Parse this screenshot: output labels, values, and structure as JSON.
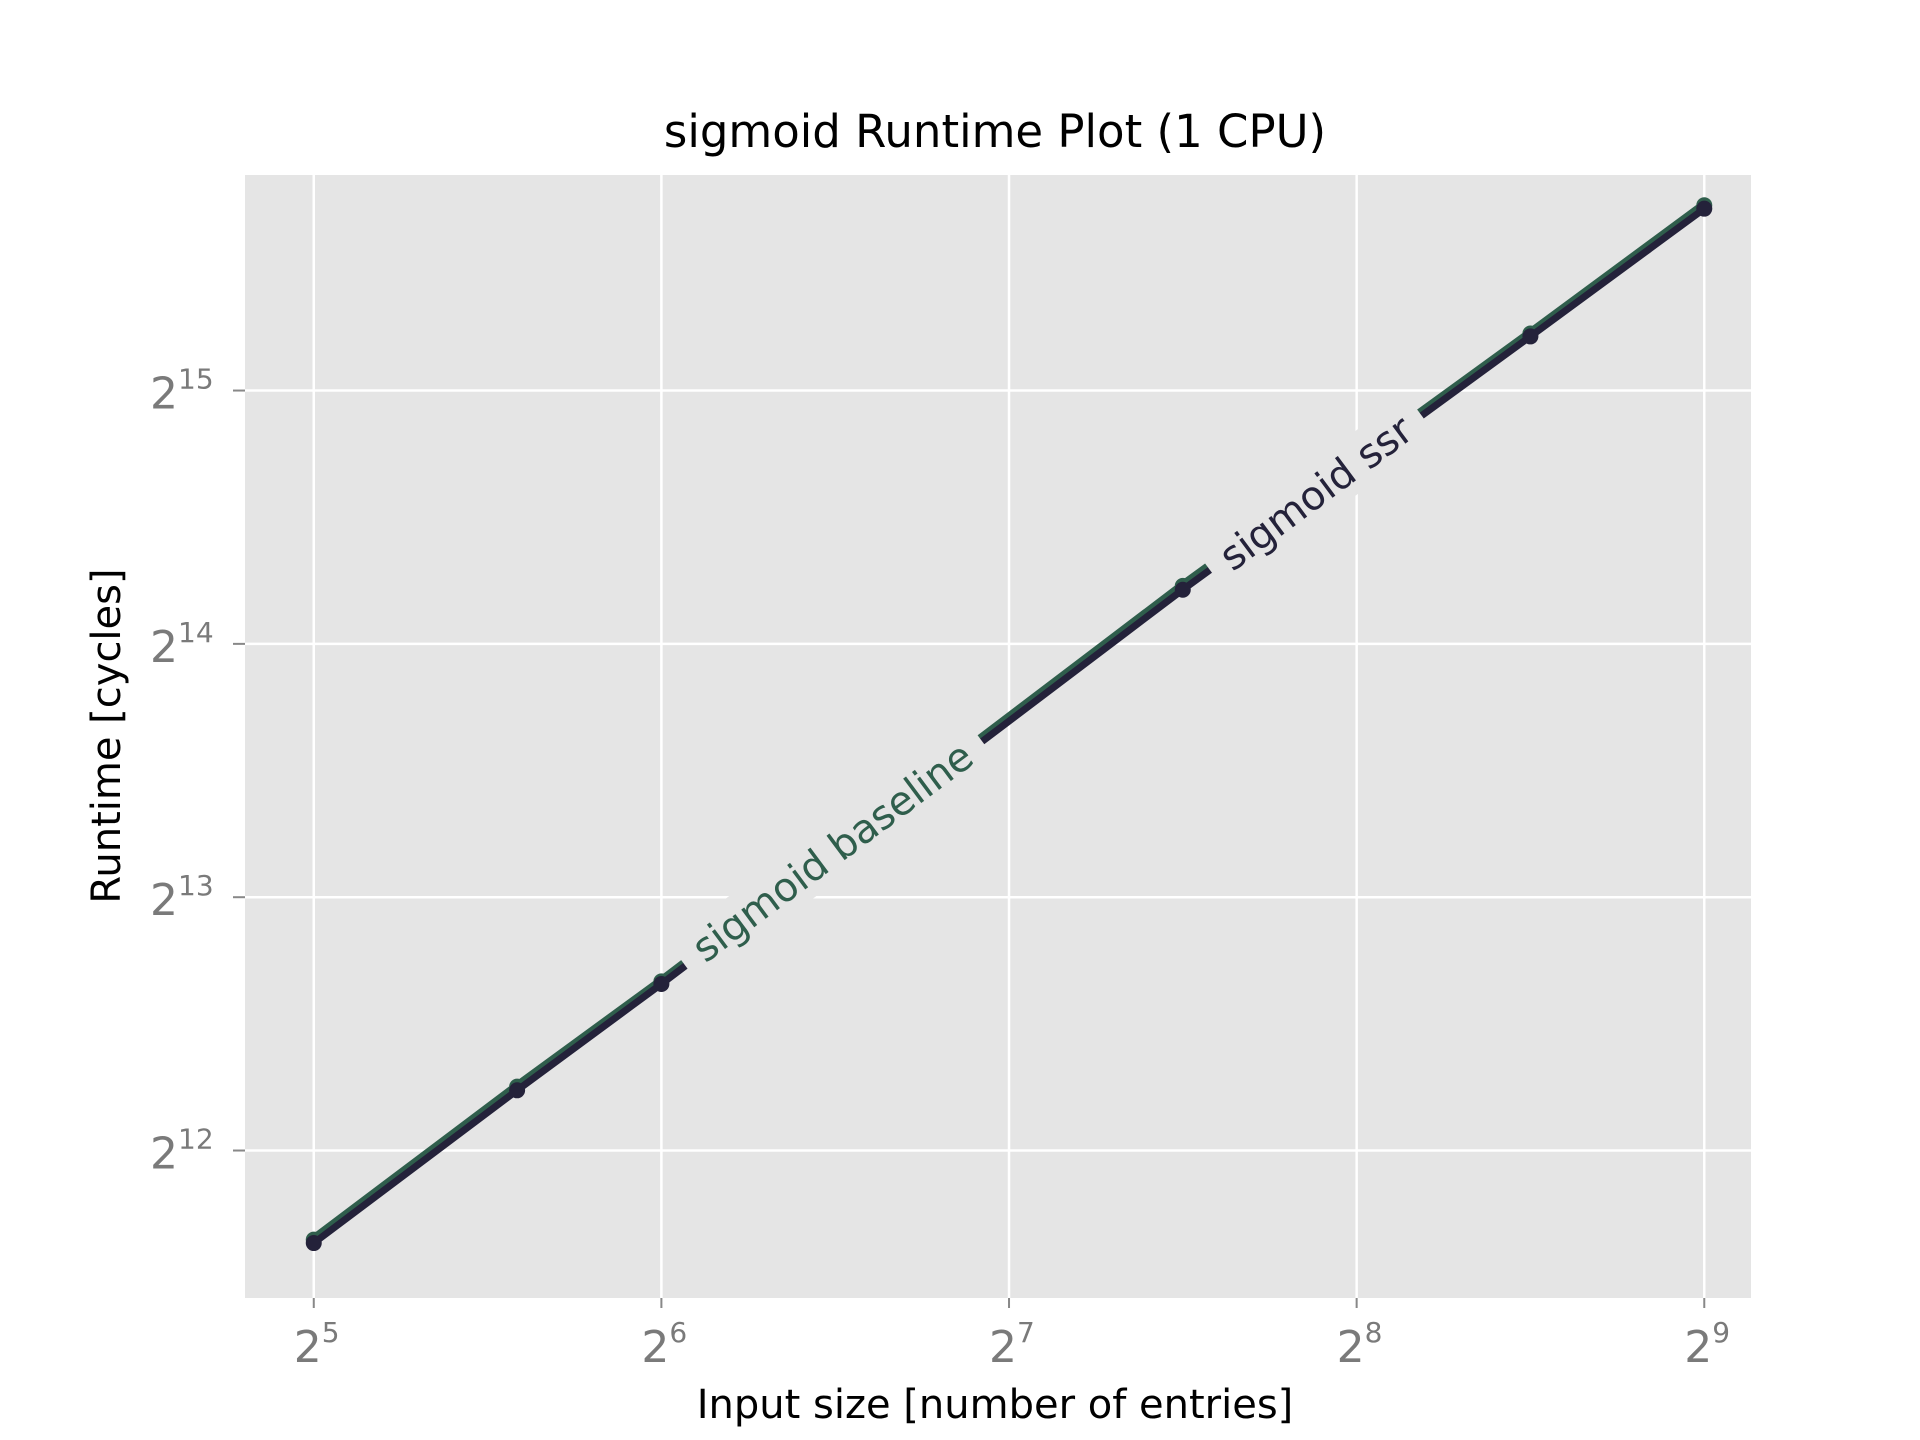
{
  "chart_data": {
    "type": "line",
    "title": "sigmoid Runtime Plot (1 CPU)",
    "xlabel": "Input size [number of entries]",
    "ylabel": "Runtime [cycles]",
    "x_scale": "log2",
    "y_scale": "log2",
    "xlim": [
      27.9,
      562
    ],
    "ylim": [
      2736,
      59100
    ],
    "x_ticks": [
      {
        "base": "2",
        "exp": "5",
        "value": 32
      },
      {
        "base": "2",
        "exp": "6",
        "value": 64
      },
      {
        "base": "2",
        "exp": "7",
        "value": 128
      },
      {
        "base": "2",
        "exp": "8",
        "value": 256
      },
      {
        "base": "2",
        "exp": "9",
        "value": 512
      }
    ],
    "y_ticks": [
      {
        "base": "2",
        "exp": "12",
        "value": 4096
      },
      {
        "base": "2",
        "exp": "13",
        "value": 8192
      },
      {
        "base": "2",
        "exp": "14",
        "value": 16384
      },
      {
        "base": "2",
        "exp": "15",
        "value": 32768
      }
    ],
    "grid": true,
    "legend": "none (inline line labels)",
    "series": [
      {
        "name": "sigmoid baseline",
        "color": "#2f5e4c",
        "x": [
          32,
          48,
          64,
          181,
          362,
          512
        ],
        "y": [
          3210,
          4878,
          6506,
          19200,
          38300,
          54400
        ]
      },
      {
        "name": "sigmoid ssr",
        "color": "#24223a",
        "x": [
          32,
          48,
          64,
          181,
          362,
          512
        ],
        "y": [
          3180,
          4830,
          6460,
          19000,
          38000,
          53900
        ]
      }
    ]
  }
}
